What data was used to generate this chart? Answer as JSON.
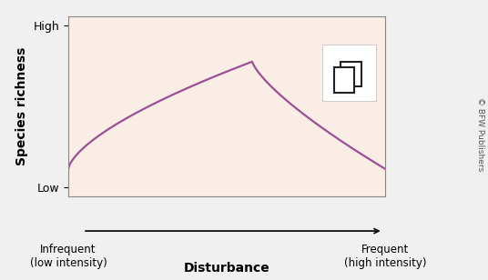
{
  "fig_background": "#f0f0f0",
  "plot_bg_color": "#f9ede5",
  "curve_color": "#9b4f96",
  "curve_linewidth": 1.6,
  "ytick_labels": [
    "Low",
    "High"
  ],
  "ytick_positions": [
    0.05,
    0.95
  ],
  "ylabel": "Species richness",
  "ylabel_fontsize": 10,
  "xlabel": "Disturbance",
  "xlabel_fontsize": 10,
  "x_left_label": "Infrequent\n(low intensity)",
  "x_right_label": "Frequent\n(high intensity)",
  "x_label_fontsize": 8.5,
  "watermark": "© BFW Publishers",
  "watermark_fontsize": 6.5,
  "arrow_color": "#111111",
  "xlim": [
    0,
    1
  ],
  "ylim": [
    0,
    1
  ],
  "spine_color": "#888888",
  "tick_fontsize": 9,
  "icon_box_color": "white",
  "icon_box_edge": "#cccccc"
}
